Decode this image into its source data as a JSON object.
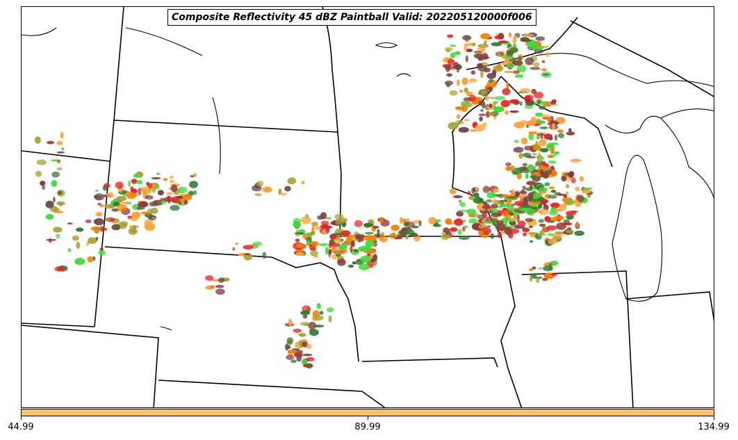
{
  "map": {
    "title": "Composite Reflectivity 45 dBZ Paintball Valid: 202205120000f006",
    "colorbar": {
      "color": "#ffc266",
      "ticks": [
        "44.99",
        "89.99",
        "134.99"
      ]
    },
    "member_colors": [
      "#3ddc3d",
      "#e8221f",
      "#f77f00",
      "#8f3a3a",
      "#2f7d32",
      "#a8a336",
      "#ffa23a",
      "#6e4a4a"
    ],
    "border_color": "#000000"
  }
}
